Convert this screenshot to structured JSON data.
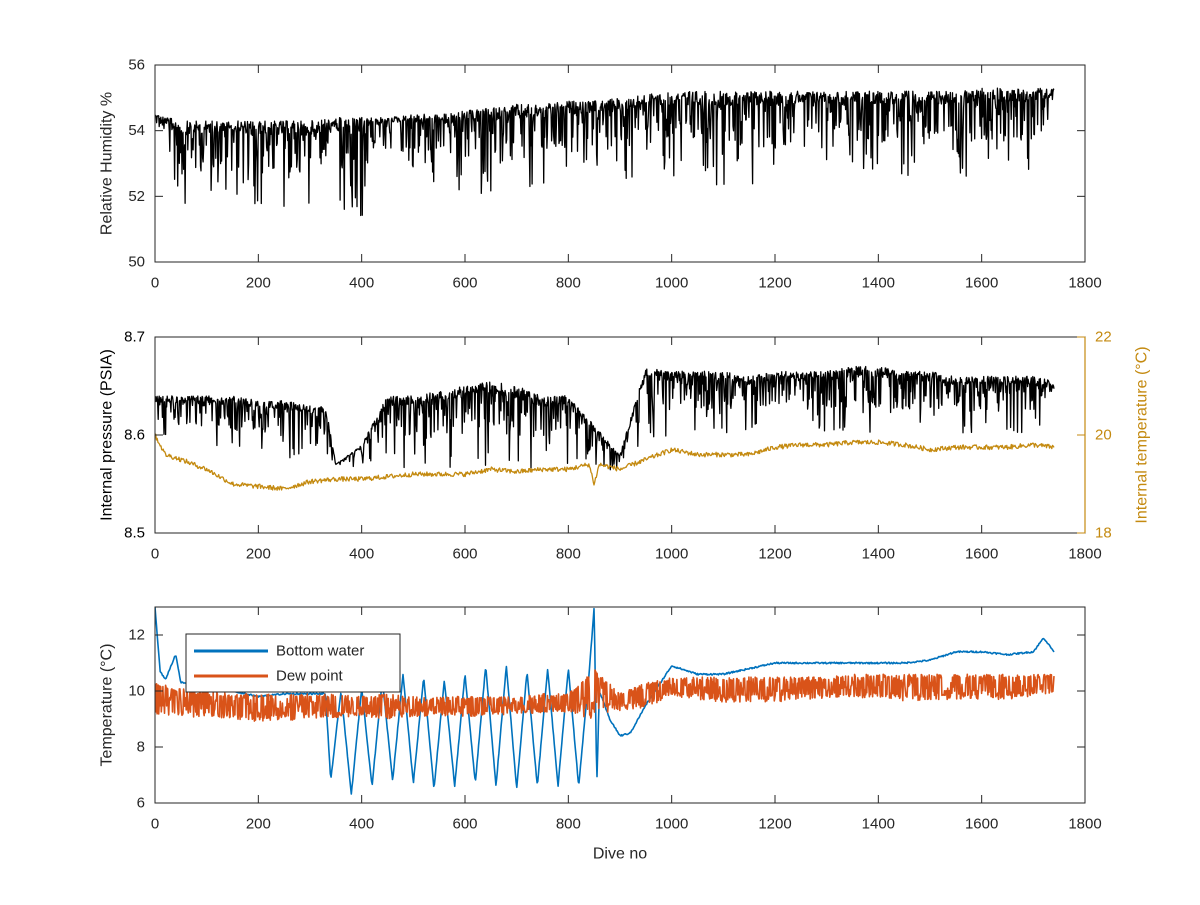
{
  "colors": {
    "black": "#000000",
    "bottom_water": "#0072BD",
    "dew_point": "#D95319",
    "internal_temperature": "#C48A10",
    "axis": "#262626"
  },
  "chart_data": [
    {
      "type": "line",
      "xlabel": "",
      "ylabel": "Relative Humidity %",
      "xlim": [
        0,
        1800
      ],
      "ylim": [
        50,
        56
      ],
      "xticks": [
        0,
        200,
        400,
        600,
        800,
        1000,
        1200,
        1400,
        1600,
        1800
      ],
      "yticks": [
        50,
        52,
        54,
        56
      ],
      "grid": false,
      "series": [
        {
          "color": "#000000",
          "x": [
            0,
            50,
            100,
            150,
            200,
            250,
            300,
            350,
            400,
            450,
            500,
            550,
            600,
            650,
            700,
            750,
            800,
            850,
            900,
            950,
            1000,
            1050,
            1100,
            1150,
            1200,
            1250,
            1300,
            1350,
            1400,
            1450,
            1500,
            1550,
            1600,
            1650,
            1700,
            1740
          ],
          "upper": [
            54.5,
            54.3,
            54.3,
            54.3,
            54.3,
            54.3,
            54.3,
            54.4,
            54.4,
            54.4,
            54.5,
            54.5,
            54.6,
            54.7,
            54.8,
            54.8,
            54.9,
            54.9,
            55.0,
            55.1,
            55.2,
            55.2,
            55.2,
            55.2,
            55.2,
            55.2,
            55.2,
            55.2,
            55.2,
            55.2,
            55.2,
            55.2,
            55.3,
            55.3,
            55.3,
            55.3
          ],
          "lower": [
            54.2,
            51.4,
            51.8,
            52.0,
            51.6,
            51.3,
            51.5,
            51.4,
            51.3,
            53.6,
            52.5,
            52.3,
            52.1,
            52.0,
            51.6,
            52.4,
            52.2,
            52.6,
            52.0,
            53.1,
            52.5,
            52.5,
            52.3,
            52.4,
            52.2,
            52.8,
            52.8,
            52.6,
            52.6,
            52.6,
            52.5,
            52.6,
            52.6,
            52.5,
            52.5,
            53.6
          ]
        }
      ]
    },
    {
      "type": "line",
      "xlabel": "",
      "ylabel": "Internal pressure (PSIA)",
      "ylabel_right": "Internal temperature (°C)",
      "xlim": [
        0,
        1800
      ],
      "ylim": [
        8.5,
        8.7
      ],
      "ylim_right": [
        18,
        22
      ],
      "xticks": [
        0,
        200,
        400,
        600,
        800,
        1000,
        1200,
        1400,
        1600,
        1800
      ],
      "yticks": [
        8.5,
        8.6,
        8.7
      ],
      "yticks_right": [
        18,
        20,
        22
      ],
      "grid": false,
      "series": [
        {
          "axis": "left",
          "color": "#000000",
          "x": [
            0,
            50,
            100,
            150,
            200,
            250,
            300,
            330,
            350,
            400,
            450,
            500,
            550,
            600,
            650,
            700,
            750,
            800,
            850,
            900,
            950,
            1000,
            1050,
            1100,
            1150,
            1200,
            1250,
            1300,
            1350,
            1400,
            1450,
            1500,
            1550,
            1600,
            1650,
            1700,
            1740
          ],
          "upper": [
            8.64,
            8.64,
            8.64,
            8.64,
            8.635,
            8.635,
            8.63,
            8.63,
            8.57,
            8.59,
            8.64,
            8.64,
            8.645,
            8.65,
            8.655,
            8.65,
            8.64,
            8.64,
            8.61,
            8.58,
            8.67,
            8.665,
            8.665,
            8.665,
            8.66,
            8.665,
            8.665,
            8.665,
            8.67,
            8.67,
            8.665,
            8.665,
            8.66,
            8.66,
            8.66,
            8.66,
            8.655
          ],
          "lower": [
            8.6,
            8.59,
            8.585,
            8.58,
            8.58,
            8.575,
            8.58,
            8.58,
            8.57,
            8.565,
            8.57,
            8.565,
            8.565,
            8.565,
            8.57,
            8.565,
            8.565,
            8.565,
            8.56,
            8.565,
            8.595,
            8.6,
            8.6,
            8.6,
            8.6,
            8.61,
            8.6,
            8.6,
            8.6,
            8.6,
            8.6,
            8.6,
            8.6,
            8.6,
            8.6,
            8.6,
            8.6
          ]
        },
        {
          "axis": "right",
          "color": "#C48A10",
          "x": [
            0,
            20,
            50,
            100,
            150,
            200,
            250,
            300,
            350,
            400,
            450,
            500,
            550,
            600,
            650,
            700,
            750,
            800,
            840,
            850,
            860,
            900,
            950,
            1000,
            1050,
            1100,
            1150,
            1200,
            1250,
            1300,
            1350,
            1400,
            1450,
            1500,
            1550,
            1600,
            1650,
            1700,
            1740
          ],
          "y": [
            20.0,
            19.6,
            19.5,
            19.3,
            19.0,
            18.95,
            18.9,
            19.05,
            19.1,
            19.1,
            19.15,
            19.2,
            19.2,
            19.2,
            19.3,
            19.25,
            19.3,
            19.3,
            19.4,
            19.0,
            19.4,
            19.3,
            19.5,
            19.7,
            19.6,
            19.6,
            19.6,
            19.75,
            19.8,
            19.8,
            19.85,
            19.85,
            19.8,
            19.7,
            19.75,
            19.75,
            19.75,
            19.8,
            19.75
          ]
        }
      ]
    },
    {
      "type": "line",
      "xlabel": "Dive no",
      "ylabel": "Temperature (°C)",
      "xlim": [
        0,
        1800
      ],
      "ylim": [
        6,
        13
      ],
      "xticks": [
        0,
        200,
        400,
        600,
        800,
        1000,
        1200,
        1400,
        1600,
        1800
      ],
      "yticks": [
        6,
        8,
        10,
        12
      ],
      "grid": false,
      "legend": "top-left",
      "series": [
        {
          "name": "Bottom water",
          "color": "#0072BD",
          "x": [
            0,
            10,
            20,
            40,
            50,
            100,
            150,
            200,
            250,
            300,
            330,
            340,
            360,
            380,
            400,
            420,
            440,
            460,
            480,
            500,
            520,
            540,
            560,
            580,
            600,
            620,
            640,
            660,
            680,
            700,
            720,
            740,
            760,
            780,
            800,
            820,
            840,
            850,
            855,
            860,
            880,
            900,
            920,
            950,
            1000,
            1050,
            1100,
            1150,
            1200,
            1250,
            1300,
            1350,
            1400,
            1450,
            1500,
            1550,
            1600,
            1650,
            1700,
            1720,
            1740
          ],
          "y": [
            13.0,
            10.7,
            10.4,
            11.3,
            10.3,
            10.2,
            10.0,
            9.8,
            9.9,
            9.9,
            9.9,
            6.8,
            10.0,
            6.3,
            10.1,
            6.6,
            10.4,
            6.8,
            10.6,
            6.7,
            10.5,
            6.5,
            10.4,
            6.6,
            10.6,
            6.7,
            10.9,
            6.6,
            10.9,
            6.5,
            10.7,
            6.6,
            10.8,
            6.6,
            10.8,
            6.6,
            10.6,
            13.0,
            6.6,
            10.0,
            9.0,
            8.4,
            8.5,
            9.5,
            10.9,
            10.6,
            10.6,
            10.8,
            11.0,
            11.0,
            11.0,
            11.0,
            11.0,
            11.0,
            11.1,
            11.4,
            11.4,
            11.3,
            11.4,
            11.9,
            11.4
          ]
        },
        {
          "name": "Dew point",
          "color": "#D95319",
          "x": [
            0,
            50,
            100,
            150,
            200,
            250,
            300,
            350,
            400,
            450,
            500,
            550,
            600,
            650,
            700,
            750,
            800,
            850,
            900,
            950,
            1000,
            1050,
            1100,
            1150,
            1200,
            1250,
            1300,
            1350,
            1400,
            1450,
            1500,
            1550,
            1600,
            1650,
            1700,
            1740
          ],
          "upper": [
            10.3,
            10.1,
            10.0,
            9.9,
            9.9,
            9.9,
            9.9,
            9.9,
            9.8,
            9.9,
            9.8,
            9.8,
            9.8,
            9.8,
            9.8,
            9.9,
            9.9,
            10.8,
            9.9,
            10.3,
            10.5,
            10.5,
            10.5,
            10.5,
            10.5,
            10.5,
            10.5,
            10.6,
            10.6,
            10.6,
            10.6,
            10.6,
            10.6,
            10.6,
            10.6,
            10.6
          ],
          "lower": [
            9.2,
            9.0,
            9.1,
            9.0,
            8.9,
            8.9,
            9.0,
            9.0,
            9.1,
            9.0,
            9.1,
            9.1,
            9.1,
            9.1,
            9.2,
            9.2,
            9.2,
            9.0,
            9.3,
            9.4,
            9.8,
            9.7,
            9.6,
            9.6,
            9.6,
            9.7,
            9.7,
            9.8,
            9.7,
            9.6,
            9.7,
            9.7,
            9.7,
            9.7,
            9.8,
            9.9
          ]
        }
      ]
    }
  ]
}
